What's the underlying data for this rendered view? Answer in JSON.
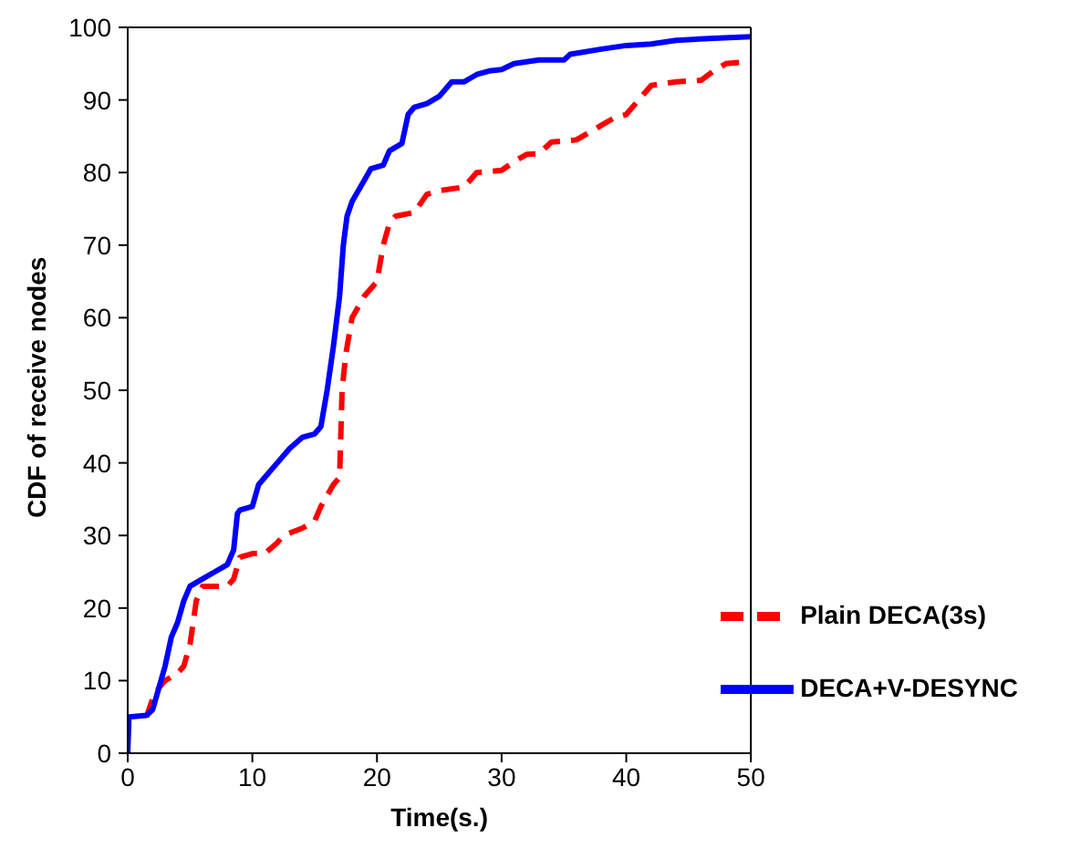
{
  "chart_data": {
    "type": "line",
    "xlabel": "Time(s.)",
    "ylabel": "CDF of receive nodes",
    "xlim": [
      0,
      50
    ],
    "ylim": [
      0,
      100
    ],
    "xticks": [
      0,
      10,
      20,
      30,
      40,
      50
    ],
    "yticks": [
      0,
      10,
      20,
      30,
      40,
      50,
      60,
      70,
      80,
      90,
      100
    ],
    "grid": false,
    "legend": "bottom right",
    "marker": "none",
    "series": [
      {
        "name": "Plain DECA(3s)",
        "color": "#ff0000",
        "line_style": "dashed",
        "x": [
          1.5,
          2,
          2.5,
          3,
          4,
          4.5,
          5,
          5.5,
          6,
          8,
          8.5,
          9,
          10,
          11,
          12,
          12.5,
          14,
          15,
          15.5,
          16.5,
          17,
          17.2,
          17.5,
          18,
          19,
          20,
          20.5,
          21,
          21.5,
          23,
          24,
          25,
          27,
          28,
          30,
          31,
          32,
          33,
          34,
          36,
          37,
          38,
          39,
          40,
          41,
          42,
          44,
          46,
          47,
          48,
          50
        ],
        "values": [
          5,
          7.5,
          9,
          10,
          11,
          12,
          15,
          21,
          23,
          23,
          24,
          27,
          27.5,
          27.5,
          29,
          30,
          31,
          32,
          34,
          37,
          38,
          50,
          55,
          60,
          63,
          65,
          70,
          73,
          74,
          74.5,
          77,
          77.5,
          78,
          80,
          80.3,
          81.5,
          82.5,
          82.6,
          84.2,
          84.5,
          85.5,
          86.5,
          87.5,
          88,
          90,
          92,
          92.5,
          92.7,
          94,
          95,
          95.3
        ]
      },
      {
        "name": "DECA+V-DESYNC",
        "color": "#0000ff",
        "line_style": "solid",
        "x": [
          0,
          0.1,
          1.5,
          2,
          2.5,
          3,
          3.5,
          4,
          4.5,
          5,
          6,
          7,
          8,
          8.5,
          8.8,
          9,
          10,
          10.5,
          11,
          12,
          13,
          14,
          15,
          15.5,
          16,
          16.5,
          17,
          17.3,
          17.6,
          18,
          19,
          19.5,
          20.5,
          21,
          22,
          22.5,
          23,
          24,
          25,
          26,
          27,
          28,
          29,
          30,
          31,
          33,
          35,
          35.5,
          38,
          40,
          42,
          44,
          47,
          50
        ],
        "values": [
          0,
          5,
          5.2,
          6,
          9,
          12,
          16,
          18,
          21,
          23,
          24,
          25,
          26,
          28,
          33,
          33.5,
          34,
          37,
          38,
          40,
          42,
          43.5,
          44,
          45,
          50,
          56,
          63,
          70,
          74,
          76,
          79,
          80.5,
          81,
          83,
          84,
          88,
          89,
          89.5,
          90.5,
          92.5,
          92.5,
          93.5,
          94,
          94.2,
          95,
          95.5,
          95.5,
          96.3,
          97,
          97.5,
          97.7,
          98.2,
          98.5,
          98.7
        ]
      }
    ]
  }
}
